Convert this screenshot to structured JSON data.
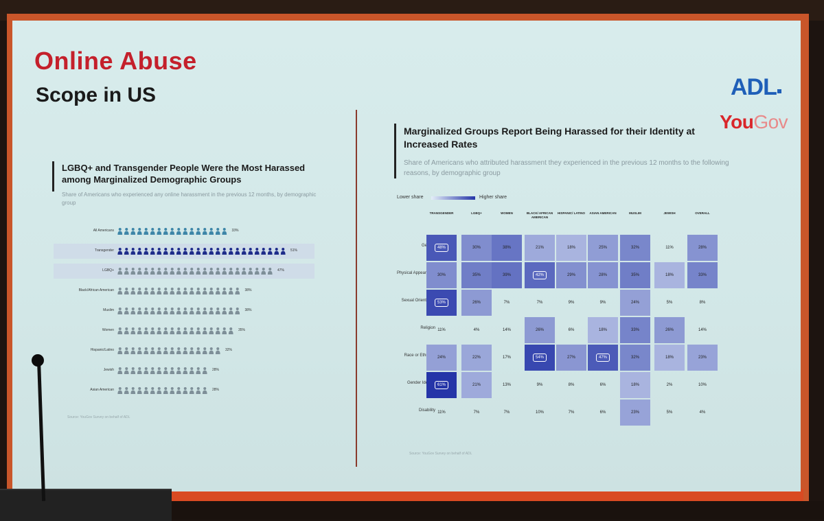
{
  "slide": {
    "title": "Online Abuse",
    "subtitle": "Scope in US",
    "logo_primary": "ADL",
    "logo_secondary_a": "You",
    "logo_secondary_b": "Gov"
  },
  "left_panel": {
    "title": "LGBQ+ and Transgender People Were the Most Harassed among Marginalized Demographic Groups",
    "subtitle": "Share of Americans who experienced any online harassment in the previous 12 months, by demographic group",
    "source": "Source: YouGov Survey on behalf of ADL"
  },
  "right_panel": {
    "title": "Marginalized Groups Report Being Harassed for their Identity at Increased Rates",
    "subtitle": "Share of Americans who attributed harassment they experienced in the previous 12 months to the following reasons, by demographic group",
    "legend_low": "Lower share",
    "legend_high": "Higher share",
    "source": "Source: YouGov Survey on behalf of ADL"
  },
  "colors": {
    "accent_red": "#c4202b",
    "adl_blue": "#1f5fb8",
    "heat_low": "#e4eef8",
    "heat_high": "#2535a8",
    "pict_light": "#3e86a8",
    "pict_dark": "#1e2c8a",
    "pict_grey": "#7e8f98"
  },
  "chart_data": [
    {
      "type": "bar",
      "categories": [
        "All Americans",
        "Transgender",
        "LGBQ+",
        "Black/African American",
        "Muslim",
        "Women",
        "Hispanic/Latino",
        "Jewish",
        "Asian American"
      ],
      "values": [
        33,
        51,
        47,
        38,
        38,
        35,
        32,
        28,
        28
      ],
      "value_labels": [
        "33%",
        "51%",
        "47%",
        "38%",
        "38%",
        "35%",
        "32%",
        "28%",
        "28%"
      ],
      "highlighted": [
        "Transgender",
        "LGBQ+"
      ],
      "ylim": [
        0,
        100
      ]
    },
    {
      "type": "heatmap",
      "columns": [
        "TRANSGENDER",
        "LGBQ+",
        "WOMEN",
        "BLACK/ AFRICAN AMERICAN",
        "HISPANIC/ LATINO",
        "ASIAN AMERICAN",
        "MUSLIM",
        "JEWISH",
        "OVERALL"
      ],
      "rows": [
        "Gender",
        "Physical Appearance",
        "Sexual Orientation",
        "Religion",
        "Race or Ethnicity",
        "Gender Identity",
        "Disability"
      ],
      "values": [
        [
          48,
          30,
          38,
          21,
          18,
          25,
          32,
          11,
          28
        ],
        [
          30,
          35,
          39,
          42,
          29,
          28,
          35,
          18,
          33
        ],
        [
          53,
          26,
          7,
          7,
          9,
          9,
          24,
          5,
          8
        ],
        [
          11,
          4,
          14,
          26,
          6,
          18,
          33,
          26,
          14
        ],
        [
          24,
          22,
          17,
          54,
          27,
          47,
          32,
          18,
          23
        ],
        [
          61,
          21,
          13,
          9,
          8,
          6,
          18,
          2,
          10
        ],
        [
          11,
          7,
          7,
          10,
          7,
          6,
          23,
          5,
          4
        ]
      ],
      "labels": [
        [
          "48%",
          "30%",
          "38%",
          "21%",
          "18%",
          "25%",
          "32%",
          "11%",
          "28%"
        ],
        [
          "30%",
          "35%",
          "39%",
          "42%",
          "29%",
          "28%",
          "35%",
          "18%",
          "33%"
        ],
        [
          "53%",
          "26%",
          "7%",
          "7%",
          "9%",
          "9%",
          "24%",
          "5%",
          "8%"
        ],
        [
          "11%",
          "4%",
          "14%",
          "26%",
          "6%",
          "18%",
          "33%",
          "26%",
          "14%"
        ],
        [
          "24%",
          "22%",
          "17%",
          "54%",
          "27%",
          "47%",
          "32%",
          "18%",
          "23%"
        ],
        [
          "61%",
          "21%",
          "13%",
          "9%",
          "8%",
          "6%",
          "18%",
          "2%",
          "10%"
        ],
        [
          "11%",
          "7%",
          "7%",
          "10%",
          "7%",
          "6%",
          "23%",
          "5%",
          "4%"
        ]
      ]
    }
  ]
}
